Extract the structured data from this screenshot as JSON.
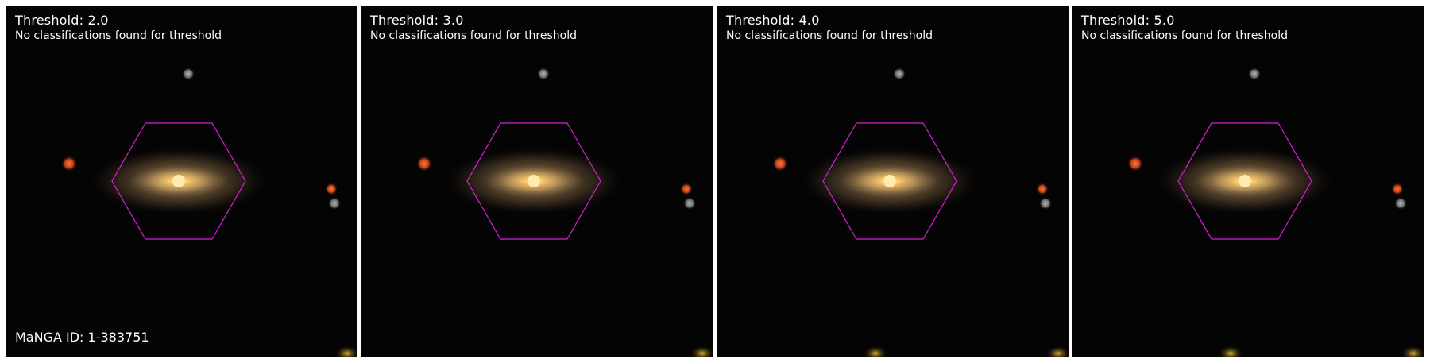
{
  "panels": [
    {
      "title": "Threshold: 2.0",
      "message": "No classifications found for threshold"
    },
    {
      "title": "Threshold: 3.0",
      "message": "No classifications found for threshold"
    },
    {
      "title": "Threshold: 4.0",
      "message": "No classifications found for threshold"
    },
    {
      "title": "Threshold: 5.0",
      "message": "No classifications found for threshold"
    }
  ],
  "manga_id_label": "MaNGA ID: 1-383751",
  "colors": {
    "background": "#050404",
    "hexagon": "#d81ed8",
    "galaxy_core": "#ffe7a0",
    "galaxy_halo": "#b08a50",
    "red_star": "#e0501a",
    "grey_star": "#9a9a9a",
    "text": "#ffffff"
  }
}
